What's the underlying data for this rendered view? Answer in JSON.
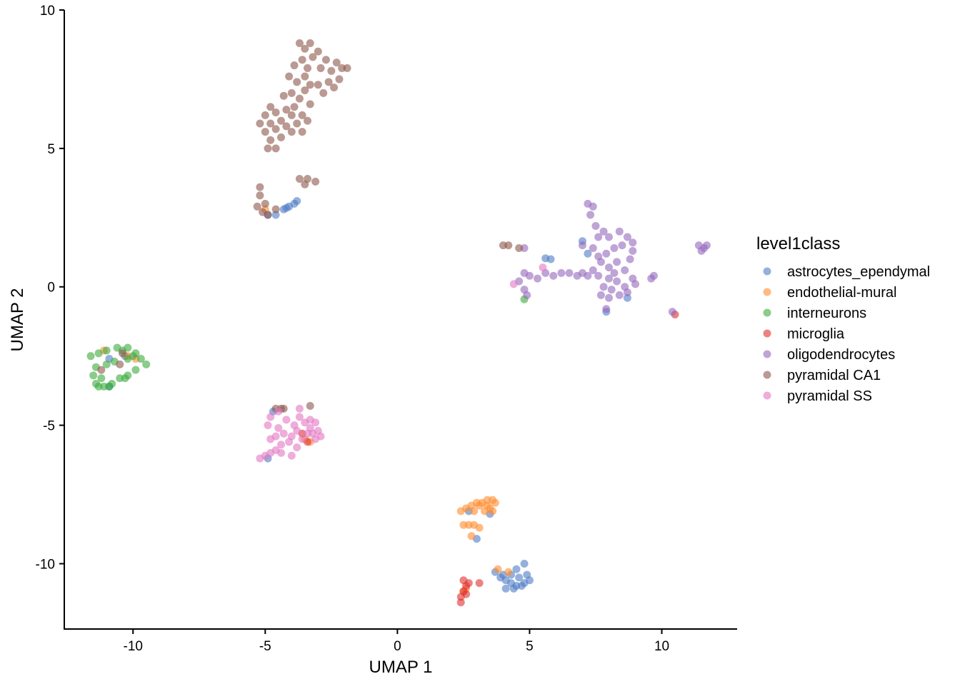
{
  "chart_data": {
    "type": "scatter",
    "xlabel": "UMAP 1",
    "ylabel": "UMAP 2",
    "xlim": [
      -12.6,
      12.85
    ],
    "ylim": [
      -12.36,
      10
    ],
    "xticks": [
      -10,
      -5,
      0,
      5,
      10
    ],
    "yticks": [
      -10,
      -5,
      0,
      5,
      10
    ],
    "grid": false,
    "point_opacity": 0.6,
    "legend": {
      "title": "level1class",
      "placement": "right"
    },
    "series": [
      {
        "name": "astrocytes_ependymal",
        "color": "#4E7CC4",
        "points": [
          [
            3.7,
            -10.3
          ],
          [
            3.9,
            -10.5
          ],
          [
            4.1,
            -10.6
          ],
          [
            4.3,
            -10.7
          ],
          [
            4.5,
            -10.8
          ],
          [
            4.7,
            -10.8
          ],
          [
            4.3,
            -10.4
          ],
          [
            4.6,
            -10.5
          ],
          [
            4.9,
            -10.4
          ],
          [
            5.0,
            -10.6
          ],
          [
            4.8,
            -10.0
          ],
          [
            4.5,
            -10.2
          ],
          [
            4.1,
            -10.9
          ],
          [
            4.0,
            -10.4
          ],
          [
            4.4,
            -10.9
          ],
          [
            4.8,
            -10.7
          ],
          [
            3.5,
            -8.2
          ],
          [
            2.7,
            -8.1
          ],
          [
            3.0,
            -9.1
          ],
          [
            -4.3,
            2.8
          ],
          [
            -4.1,
            2.9
          ],
          [
            -3.9,
            3.0
          ],
          [
            -3.8,
            3.1
          ],
          [
            -4.6,
            2.6
          ],
          [
            -4.9,
            2.6
          ],
          [
            -4.2,
            2.85
          ],
          [
            7.0,
            1.65
          ],
          [
            5.6,
            1.03
          ],
          [
            5.8,
            1.0
          ],
          [
            8.7,
            -0.4
          ],
          [
            7.9,
            -0.9
          ],
          [
            7.2,
            1.2
          ],
          [
            -10.9,
            -2.6
          ],
          [
            -10.3,
            -2.5
          ],
          [
            -10.9,
            -3.6
          ],
          [
            -4.7,
            -4.5
          ],
          [
            -4.9,
            -6.2
          ]
        ]
      },
      {
        "name": "endothelial-mural",
        "color": "#FF8C2E",
        "points": [
          [
            2.4,
            -8.1
          ],
          [
            2.6,
            -8.0
          ],
          [
            2.8,
            -7.9
          ],
          [
            3.0,
            -7.8
          ],
          [
            3.2,
            -7.8
          ],
          [
            3.4,
            -7.7
          ],
          [
            3.6,
            -7.7
          ],
          [
            3.7,
            -7.8
          ],
          [
            3.5,
            -8.0
          ],
          [
            3.3,
            -8.1
          ],
          [
            3.6,
            -8.1
          ],
          [
            2.9,
            -8.1
          ],
          [
            2.7,
            -8.6
          ],
          [
            2.9,
            -8.6
          ],
          [
            3.1,
            -8.7
          ],
          [
            2.5,
            -8.6
          ],
          [
            2.8,
            -9.0
          ],
          [
            3.1,
            -7.9
          ],
          [
            3.4,
            -7.9
          ],
          [
            3.8,
            -10.2
          ],
          [
            4.2,
            -10.3
          ],
          [
            2.5,
            -11.0
          ],
          [
            2.6,
            -10.9
          ],
          [
            -5.0,
            2.8
          ],
          [
            -11.1,
            -2.3
          ],
          [
            -10.2,
            -2.5
          ],
          [
            -9.9,
            -2.6
          ],
          [
            -3.5,
            -5.5
          ],
          [
            -3.3,
            -5.6
          ]
        ]
      },
      {
        "name": "interneurons",
        "color": "#3CAA3C",
        "points": [
          [
            -11.3,
            -2.4
          ],
          [
            -11.0,
            -2.3
          ],
          [
            -10.6,
            -2.2
          ],
          [
            -10.2,
            -2.2
          ],
          [
            -9.9,
            -2.4
          ],
          [
            -9.7,
            -2.6
          ],
          [
            -9.5,
            -2.8
          ],
          [
            -9.9,
            -3.0
          ],
          [
            -10.2,
            -3.2
          ],
          [
            -10.5,
            -3.3
          ],
          [
            -10.8,
            -3.5
          ],
          [
            -11.1,
            -3.6
          ],
          [
            -11.4,
            -3.5
          ],
          [
            -11.5,
            -3.2
          ],
          [
            -11.4,
            -2.9
          ],
          [
            -11.6,
            -2.5
          ],
          [
            -10.9,
            -3.6
          ],
          [
            -10.3,
            -3.3
          ],
          [
            -10.7,
            -2.7
          ],
          [
            -10.2,
            -2.6
          ],
          [
            -11.2,
            -3.3
          ],
          [
            -10.0,
            -2.5
          ],
          [
            -11.0,
            -2.8
          ],
          [
            -10.4,
            -2.3
          ],
          [
            -11.3,
            -3.6
          ],
          [
            4.8,
            -0.45
          ]
        ]
      },
      {
        "name": "microglia",
        "color": "#E0302F",
        "points": [
          [
            2.5,
            -10.6
          ],
          [
            2.6,
            -10.8
          ],
          [
            2.5,
            -11.0
          ],
          [
            2.4,
            -11.2
          ],
          [
            2.4,
            -11.4
          ],
          [
            2.7,
            -10.7
          ],
          [
            3.1,
            -10.7
          ],
          [
            2.6,
            -11.1
          ],
          [
            -3.6,
            -5.3
          ],
          [
            -3.4,
            -5.6
          ],
          [
            10.5,
            -1.0
          ]
        ]
      },
      {
        "name": "oligodendrocytes",
        "color": "#9467BD",
        "points": [
          [
            7.2,
            3.0
          ],
          [
            7.4,
            2.9
          ],
          [
            7.3,
            2.6
          ],
          [
            7.5,
            2.2
          ],
          [
            7.6,
            1.8
          ],
          [
            7.4,
            1.4
          ],
          [
            7.8,
            2.0
          ],
          [
            8.0,
            1.8
          ],
          [
            8.4,
            2.0
          ],
          [
            8.7,
            1.8
          ],
          [
            8.9,
            1.6
          ],
          [
            8.5,
            1.5
          ],
          [
            8.2,
            1.4
          ],
          [
            7.9,
            1.2
          ],
          [
            7.7,
            0.9
          ],
          [
            8.0,
            0.7
          ],
          [
            8.3,
            0.9
          ],
          [
            8.6,
            0.6
          ],
          [
            8.9,
            0.3
          ],
          [
            9.0,
            0.1
          ],
          [
            8.6,
            0.0
          ],
          [
            8.3,
            0.2
          ],
          [
            8.0,
            0.3
          ],
          [
            7.8,
            0.0
          ],
          [
            7.6,
            0.4
          ],
          [
            7.4,
            0.6
          ],
          [
            7.2,
            0.4
          ],
          [
            7.0,
            0.5
          ],
          [
            6.8,
            0.4
          ],
          [
            6.5,
            0.5
          ],
          [
            6.2,
            0.5
          ],
          [
            5.9,
            0.4
          ],
          [
            5.6,
            0.5
          ],
          [
            5.3,
            0.3
          ],
          [
            5.0,
            0.4
          ],
          [
            4.8,
            0.5
          ],
          [
            4.6,
            0.2
          ],
          [
            4.8,
            -0.1
          ],
          [
            4.9,
            -0.3
          ],
          [
            8.0,
            -0.4
          ],
          [
            8.4,
            -0.3
          ],
          [
            7.7,
            -0.3
          ],
          [
            7.9,
            -0.8
          ],
          [
            8.7,
            -0.2
          ],
          [
            9.7,
            0.4
          ],
          [
            9.6,
            0.3
          ],
          [
            11.4,
            1.5
          ],
          [
            11.6,
            1.4
          ],
          [
            11.7,
            1.5
          ],
          [
            11.5,
            1.3
          ],
          [
            10.4,
            -0.9
          ],
          [
            7.0,
            1.5
          ],
          [
            8.9,
            1.3
          ],
          [
            4.8,
            1.4
          ],
          [
            8.2,
            0.5
          ],
          [
            7.6,
            1.1
          ],
          [
            8.8,
            1.0
          ],
          [
            8.1,
            -0.1
          ]
        ]
      },
      {
        "name": "pyramidal CA1",
        "color": "#8C564B",
        "points": [
          [
            -5.2,
            5.9
          ],
          [
            -5.0,
            6.2
          ],
          [
            -5.0,
            5.6
          ],
          [
            -4.8,
            6.5
          ],
          [
            -4.8,
            5.9
          ],
          [
            -4.8,
            5.3
          ],
          [
            -4.6,
            6.3
          ],
          [
            -4.6,
            5.7
          ],
          [
            -4.6,
            5.0
          ],
          [
            -4.4,
            6.0
          ],
          [
            -4.4,
            5.4
          ],
          [
            -4.2,
            6.4
          ],
          [
            -4.2,
            5.8
          ],
          [
            -4.0,
            6.2
          ],
          [
            -4.0,
            5.6
          ],
          [
            -3.8,
            5.9
          ],
          [
            -3.6,
            5.6
          ],
          [
            -4.9,
            5.0
          ],
          [
            -4.3,
            6.9
          ],
          [
            -4.0,
            7.0
          ],
          [
            -3.8,
            7.4
          ],
          [
            -3.7,
            6.8
          ],
          [
            -3.5,
            7.6
          ],
          [
            -3.5,
            7.1
          ],
          [
            -3.3,
            6.6
          ],
          [
            -3.3,
            7.3
          ],
          [
            -4.1,
            7.6
          ],
          [
            -3.9,
            6.5
          ],
          [
            -3.6,
            6.2
          ],
          [
            -3.4,
            6.0
          ],
          [
            -3.7,
            8.8
          ],
          [
            -3.5,
            8.6
          ],
          [
            -3.3,
            8.8
          ],
          [
            -3.6,
            8.2
          ],
          [
            -3.2,
            8.3
          ],
          [
            -3.0,
            8.5
          ],
          [
            -3.9,
            8.0
          ],
          [
            -3.4,
            7.9
          ],
          [
            -2.9,
            7.9
          ],
          [
            -2.7,
            8.2
          ],
          [
            -2.5,
            7.8
          ],
          [
            -2.3,
            8.1
          ],
          [
            -2.1,
            7.9
          ],
          [
            -1.9,
            7.9
          ],
          [
            -2.6,
            7.4
          ],
          [
            -2.4,
            7.2
          ],
          [
            -2.8,
            7.0
          ],
          [
            -2.2,
            7.5
          ],
          [
            -3.0,
            7.3
          ],
          [
            -5.3,
            2.9
          ],
          [
            -5.1,
            2.7
          ],
          [
            -5.0,
            3.0
          ],
          [
            -5.2,
            3.6
          ],
          [
            -5.2,
            3.3
          ],
          [
            -4.9,
            2.6
          ],
          [
            -4.6,
            2.8
          ],
          [
            -3.7,
            3.9
          ],
          [
            -3.4,
            3.9
          ],
          [
            -3.1,
            3.8
          ],
          [
            -3.5,
            3.7
          ],
          [
            4.0,
            1.5
          ],
          [
            4.2,
            1.5
          ],
          [
            4.6,
            1.4
          ],
          [
            -11.2,
            -3.0
          ],
          [
            -10.4,
            -2.4
          ],
          [
            -10.5,
            -2.8
          ],
          [
            -4.6,
            -4.4
          ],
          [
            -4.3,
            -4.4
          ],
          [
            -3.3,
            -4.3
          ],
          [
            -4.4,
            -4.4
          ]
        ]
      },
      {
        "name": "pyramidal SS",
        "color": "#E377C2",
        "points": [
          [
            -5.2,
            -6.2
          ],
          [
            -5.0,
            -6.1
          ],
          [
            -4.8,
            -6.0
          ],
          [
            -4.6,
            -5.9
          ],
          [
            -4.4,
            -5.7
          ],
          [
            -4.8,
            -5.5
          ],
          [
            -4.9,
            -5.0
          ],
          [
            -4.8,
            -4.7
          ],
          [
            -4.5,
            -5.1
          ],
          [
            -4.3,
            -5.3
          ],
          [
            -4.2,
            -4.8
          ],
          [
            -4.0,
            -5.4
          ],
          [
            -3.9,
            -5.0
          ],
          [
            -3.7,
            -4.7
          ],
          [
            -3.5,
            -4.9
          ],
          [
            -3.3,
            -4.8
          ],
          [
            -3.1,
            -4.9
          ],
          [
            -3.0,
            -5.2
          ],
          [
            -2.9,
            -5.4
          ],
          [
            -3.1,
            -5.5
          ],
          [
            -3.4,
            -5.3
          ],
          [
            -3.6,
            -5.5
          ],
          [
            -3.8,
            -5.8
          ],
          [
            -4.1,
            -5.6
          ],
          [
            -3.3,
            -5.1
          ],
          [
            -3.7,
            -4.4
          ],
          [
            -4.5,
            -4.5
          ],
          [
            -4.4,
            -6.0
          ],
          [
            -4.0,
            -6.1
          ],
          [
            -4.6,
            -5.4
          ],
          [
            -3.8,
            -5.2
          ],
          [
            -3.2,
            -5.3
          ],
          [
            4.4,
            0.1
          ],
          [
            5.5,
            0.7
          ]
        ]
      }
    ]
  }
}
